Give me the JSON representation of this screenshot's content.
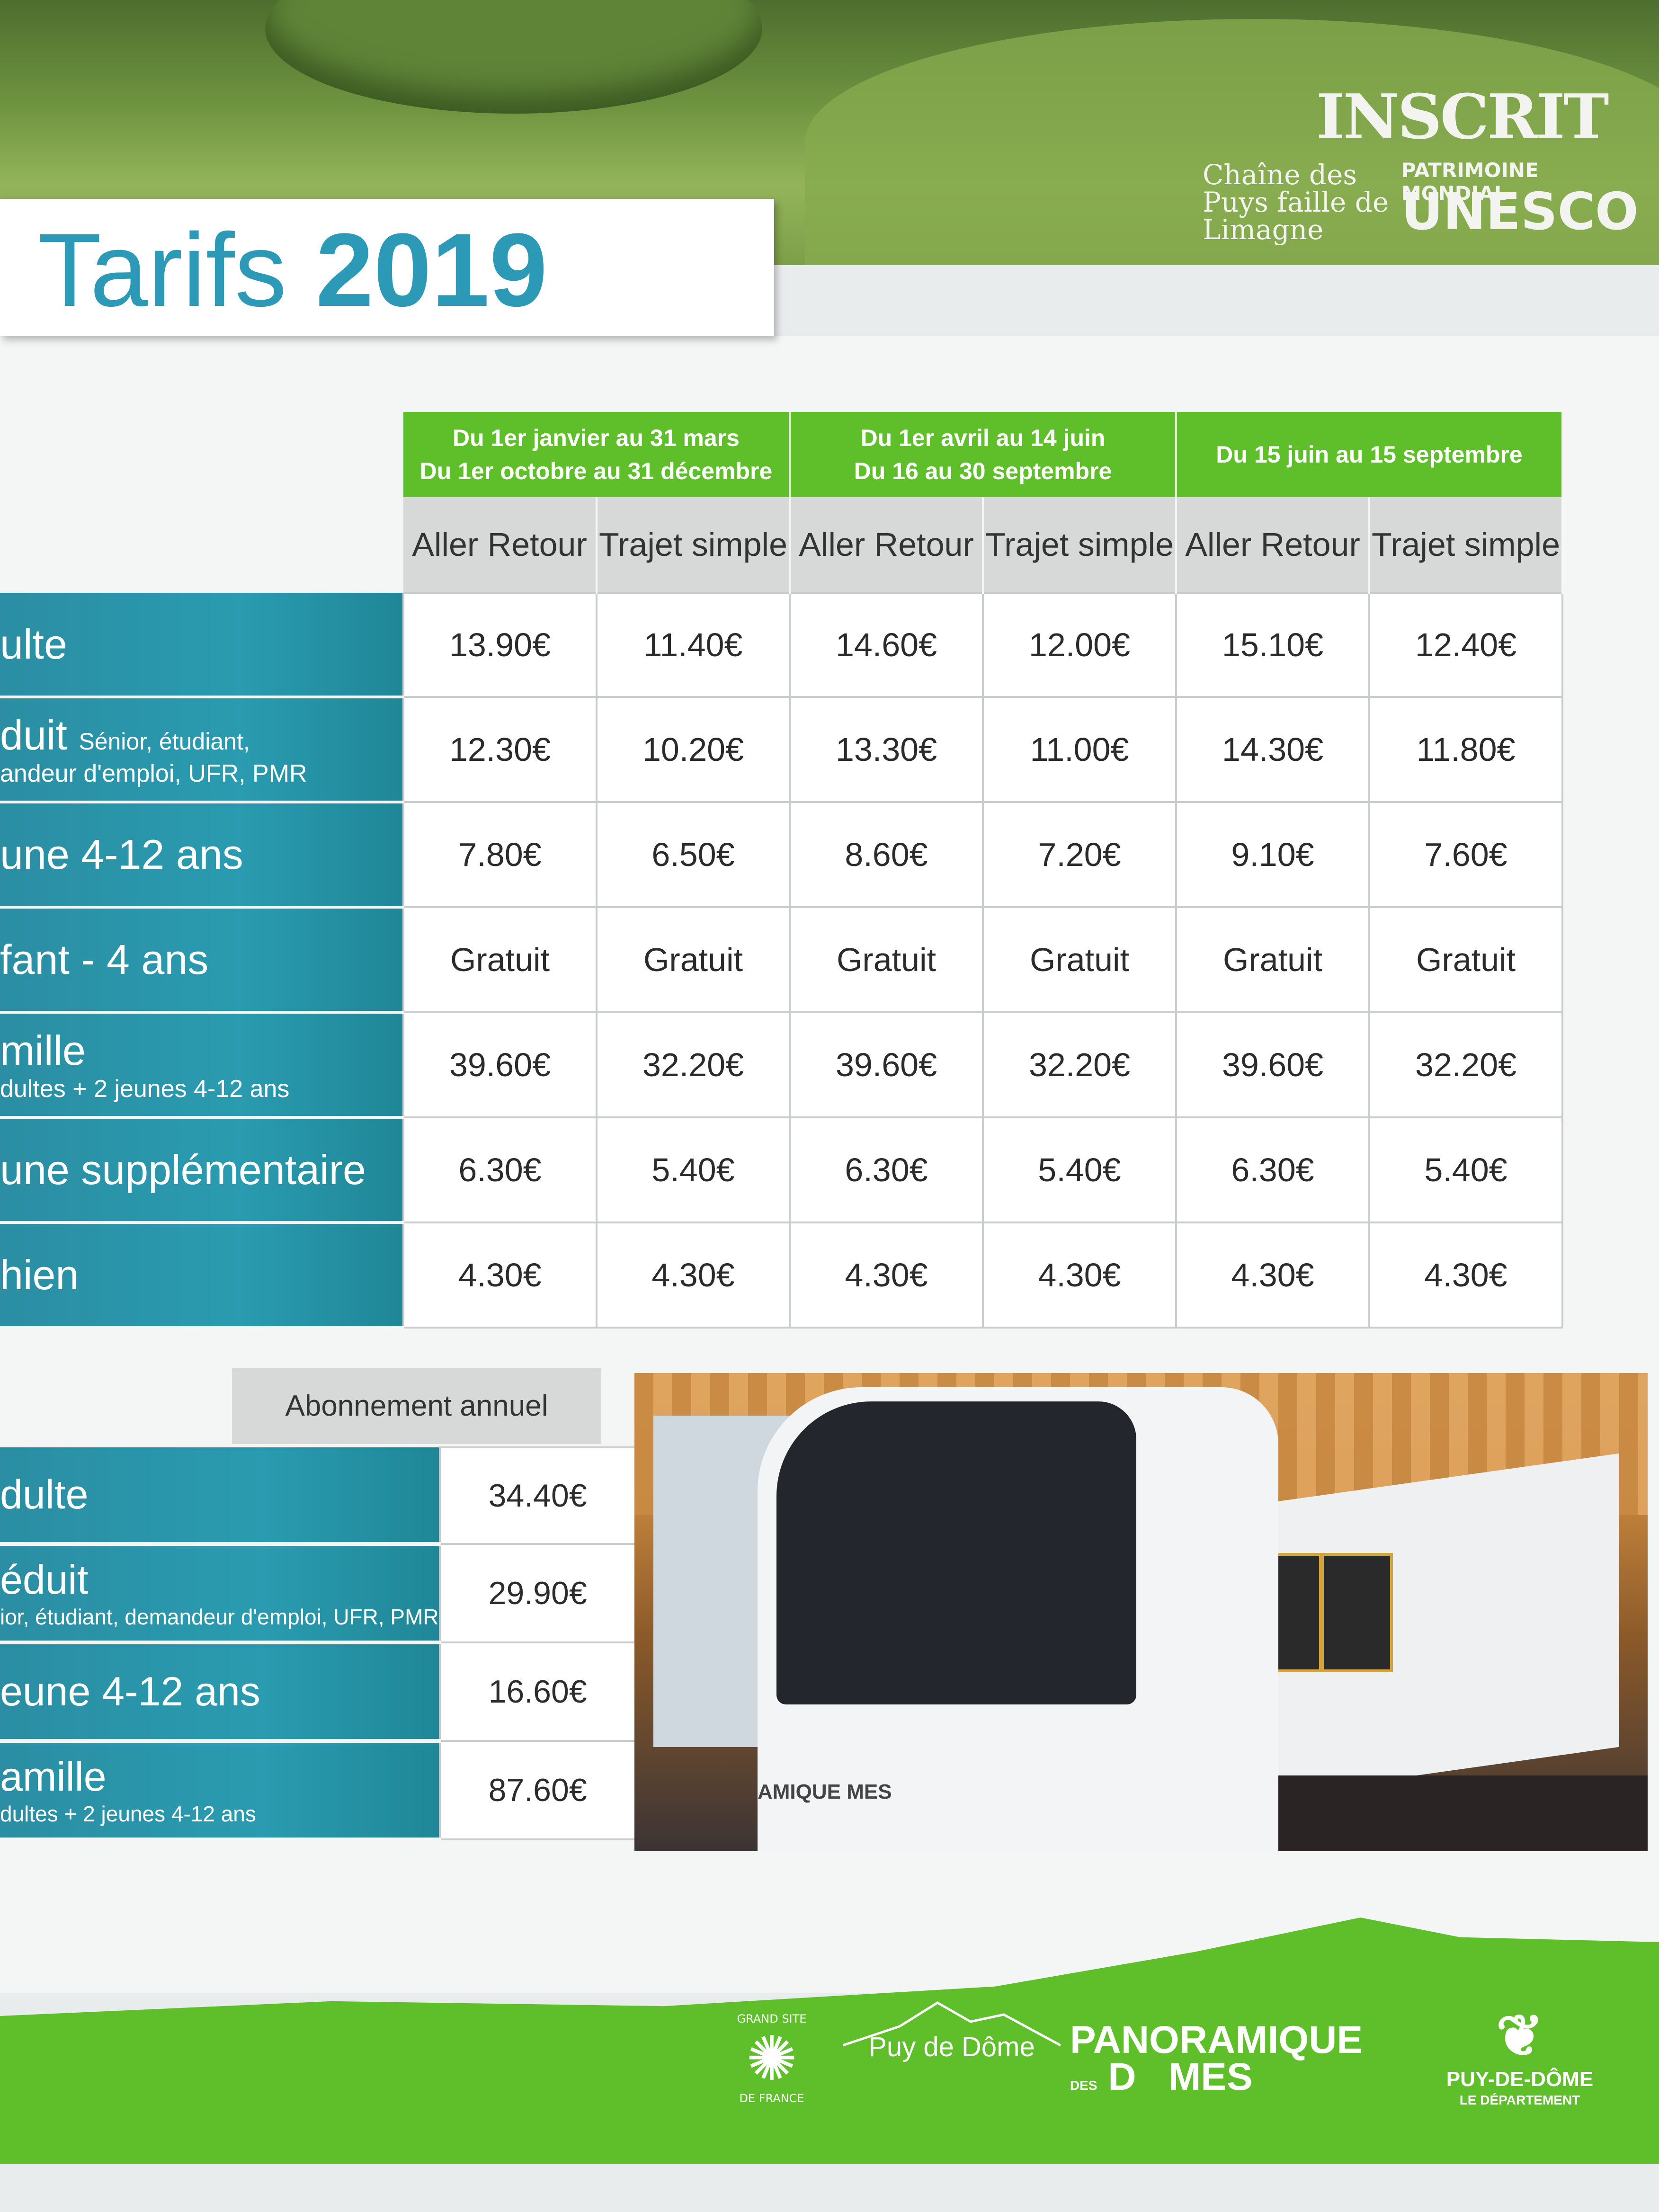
{
  "header": {
    "title_word": "Tarifs",
    "title_year": "2019",
    "unesco": {
      "inscrit": "INSCRIT",
      "chaine": "Chaîne des Puys faille de Limagne",
      "patrimoine": "PATRIMOINE MONDIAL",
      "unesco": "UNESCO"
    }
  },
  "periods": [
    {
      "line1": "Du 1er janvier au 31 mars",
      "line2": "Du 1er octobre au 31 décembre"
    },
    {
      "line1": "Du 1er avril au 14 juin",
      "line2": "Du 16 au 30 septembre"
    },
    {
      "line1": "Du 15 juin au 15 septembre",
      "line2": ""
    }
  ],
  "subheaders": {
    "aller_retour": "Aller Retour",
    "trajet_simple": "Trajet simple"
  },
  "rows": [
    {
      "label": "ulte",
      "note": "",
      "prices": [
        "13.90€",
        "11.40€",
        "14.60€",
        "12.00€",
        "15.10€",
        "12.40€"
      ]
    },
    {
      "label": "duit",
      "label_small": "Sénior, étudiant,",
      "note": "andeur d'emploi, UFR, PMR",
      "prices": [
        "12.30€",
        "10.20€",
        "13.30€",
        "11.00€",
        "14.30€",
        "11.80€"
      ]
    },
    {
      "label": "une 4-12 ans",
      "note": "",
      "prices": [
        "7.80€",
        "6.50€",
        "8.60€",
        "7.20€",
        "9.10€",
        "7.60€"
      ]
    },
    {
      "label": "fant - 4 ans",
      "note": "",
      "prices": [
        "Gratuit",
        "Gratuit",
        "Gratuit",
        "Gratuit",
        "Gratuit",
        "Gratuit"
      ]
    },
    {
      "label": "mille",
      "note": "dultes + 2 jeunes 4-12 ans",
      "prices": [
        "39.60€",
        "32.20€",
        "39.60€",
        "32.20€",
        "39.60€",
        "32.20€"
      ]
    },
    {
      "label": "une supplémentaire",
      "note": "",
      "prices": [
        "6.30€",
        "5.40€",
        "6.30€",
        "5.40€",
        "6.30€",
        "5.40€"
      ]
    },
    {
      "label": "hien",
      "note": "",
      "prices": [
        "4.30€",
        "4.30€",
        "4.30€",
        "4.30€",
        "4.30€",
        "4.30€"
      ]
    }
  ],
  "subscription": {
    "header": "Abonnement annuel",
    "rows": [
      {
        "label": "dulte",
        "note": "",
        "price": "34.40€"
      },
      {
        "label": "éduit",
        "note": "ior, étudiant, demandeur d'emploi, UFR, PMR",
        "price": "29.90€"
      },
      {
        "label": "eune 4-12 ans",
        "note": "",
        "price": "16.60€"
      },
      {
        "label": "amille",
        "note": "dultes + 2 jeunes 4-12 ans",
        "price": "87.60€"
      }
    ]
  },
  "photo": {
    "train_text": "AMIQUE MES"
  },
  "footer": {
    "grand_site": "GRAND SITE",
    "de_france": "DE FRANCE",
    "puy_de_dome": "Puy de Dôme",
    "pano_top": "PAN",
    "pano_o": "O",
    "pano_rest": "RAMIQUE",
    "pano_des": "DES",
    "pano_bottom": "D",
    "pano_mes": "MES",
    "dep_name": "PUY-DE-DÔME",
    "dep_sub": "LE DÉPARTEMENT"
  },
  "colors": {
    "green": "#5fbf2b",
    "teal": "#2a9bb0",
    "title_blue": "#2c9ab7"
  }
}
